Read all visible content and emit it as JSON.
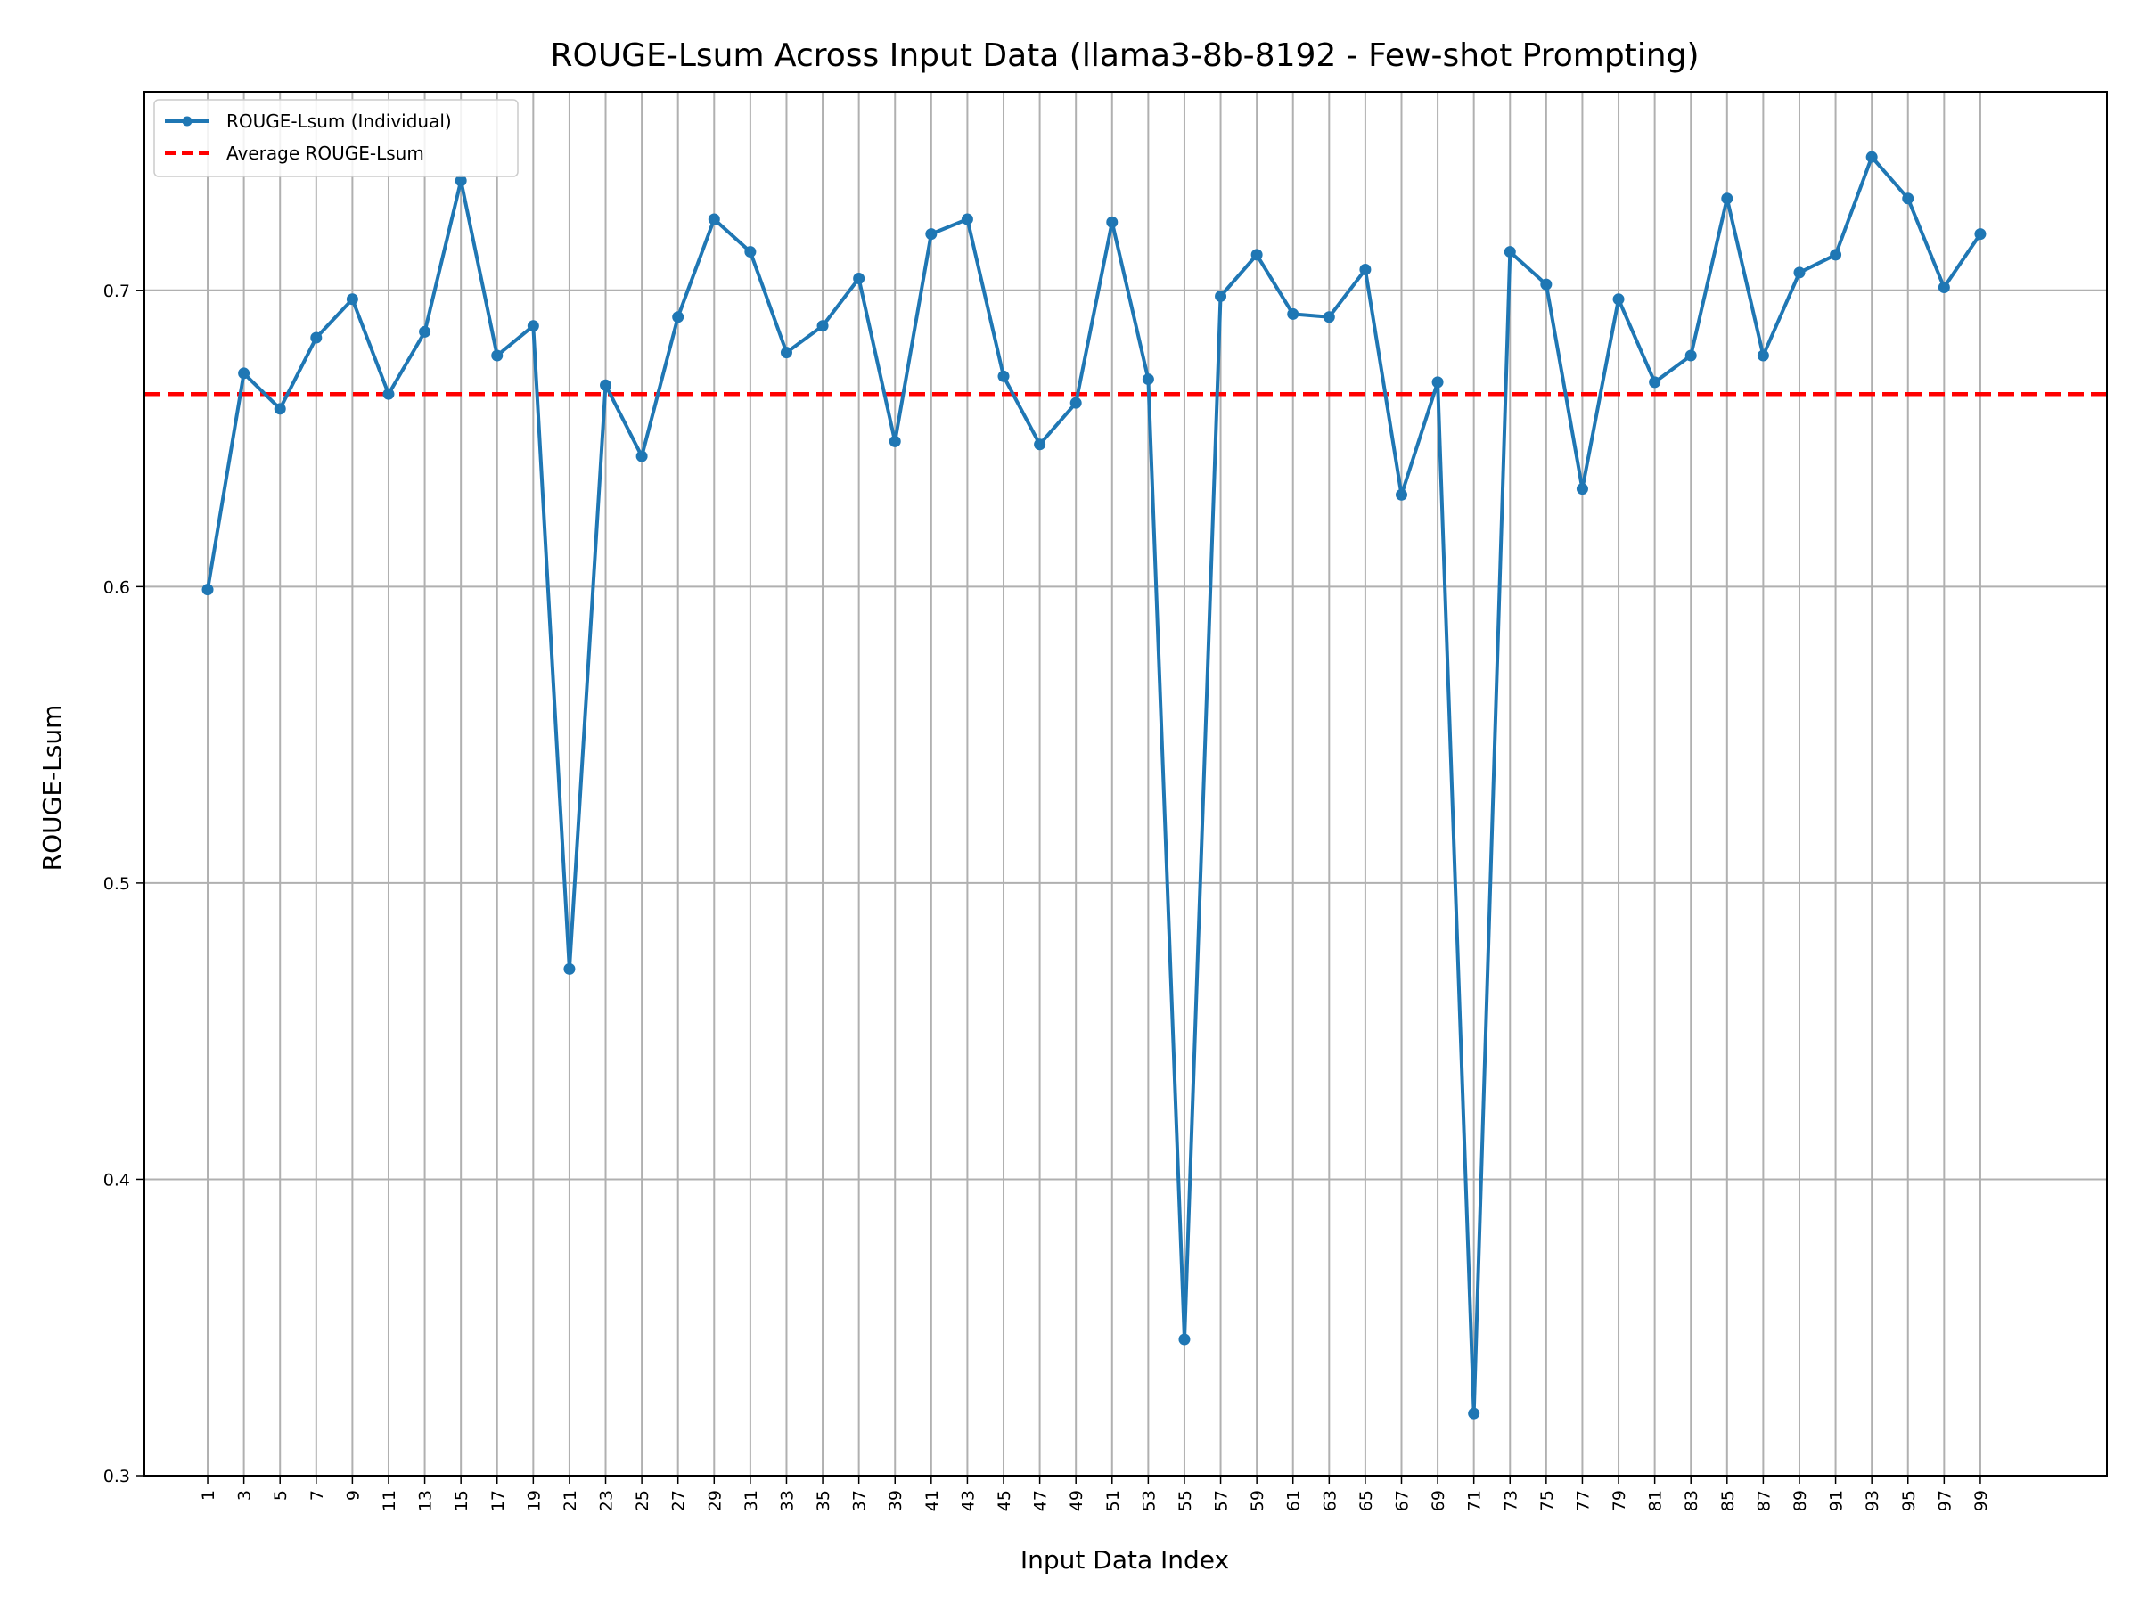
{
  "chart_data": {
    "type": "line",
    "title": "ROUGE-Lsum Across Input Data (llama3-8b-8192 - Few-shot Prompting)",
    "xlabel": "Input Data Index",
    "ylabel": "ROUGE-Lsum",
    "ylim": [
      0.3,
      0.767
    ],
    "xlim": [
      -2.5,
      106
    ],
    "y_ticks": [
      0.3,
      0.4,
      0.5,
      0.6,
      0.7
    ],
    "x_ticks": [
      1,
      3,
      5,
      7,
      9,
      11,
      13,
      15,
      17,
      19,
      21,
      23,
      25,
      27,
      29,
      31,
      33,
      35,
      37,
      39,
      41,
      43,
      45,
      47,
      49,
      51,
      53,
      55,
      57,
      59,
      61,
      63,
      65,
      67,
      69,
      71,
      73,
      75,
      77,
      79,
      81,
      83,
      85,
      87,
      89,
      91,
      93,
      95,
      97,
      99
    ],
    "grid": true,
    "legend_position": "top-left",
    "x": [
      1,
      3,
      5,
      7,
      9,
      11,
      13,
      15,
      17,
      19,
      21,
      23,
      25,
      27,
      29,
      31,
      33,
      35,
      37,
      39,
      41,
      43,
      45,
      47,
      49,
      51,
      53,
      55,
      57,
      59,
      61,
      63,
      65,
      67,
      69,
      71,
      73,
      75,
      77,
      79,
      81,
      83,
      85,
      87,
      89,
      91,
      93,
      95,
      97,
      99
    ],
    "series": [
      {
        "name": "ROUGE-Lsum (Individual)",
        "color": "#1f77b4",
        "style": "solid-with-markers",
        "values": [
          0.599,
          0.672,
          0.66,
          0.684,
          0.697,
          0.665,
          0.686,
          0.737,
          0.678,
          0.688,
          0.471,
          0.668,
          0.644,
          0.691,
          0.724,
          0.713,
          0.679,
          0.688,
          0.704,
          0.649,
          0.719,
          0.724,
          0.671,
          0.648,
          0.662,
          0.723,
          0.67,
          0.346,
          0.698,
          0.712,
          0.692,
          0.691,
          0.707,
          0.631,
          0.669,
          0.321,
          0.713,
          0.702,
          0.633,
          0.697,
          0.669,
          0.678,
          0.731,
          0.678,
          0.706,
          0.712,
          0.745,
          0.731,
          0.701,
          0.719
        ]
      },
      {
        "name": "Average ROUGE-Lsum",
        "color": "#ff0000",
        "style": "dashed",
        "value": 0.665
      }
    ]
  }
}
